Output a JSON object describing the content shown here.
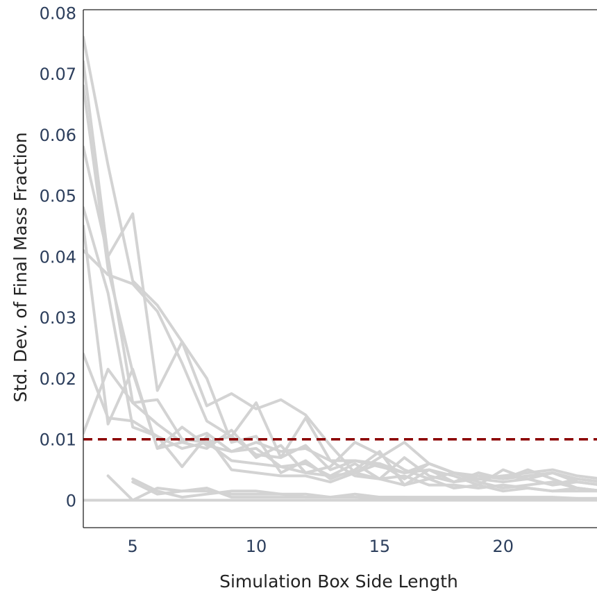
{
  "chart_data": {
    "type": "line",
    "xlabel": "Simulation Box Side Length",
    "ylabel": "Std. Dev. of Final Mass Fraction",
    "xlim": [
      3,
      23.8
    ],
    "ylim": [
      -0.0045,
      0.0805
    ],
    "x_ticks": [
      {
        "value": 5,
        "label": "5"
      },
      {
        "value": 10,
        "label": "10"
      },
      {
        "value": 15,
        "label": "15"
      },
      {
        "value": 20,
        "label": "20"
      }
    ],
    "y_ticks": [
      {
        "value": 0,
        "label": "0"
      },
      {
        "value": 0.01,
        "label": "0.01"
      },
      {
        "value": 0.02,
        "label": "0.02"
      },
      {
        "value": 0.03,
        "label": "0.03"
      },
      {
        "value": 0.04,
        "label": "0.04"
      },
      {
        "value": 0.05,
        "label": "0.05"
      },
      {
        "value": 0.06,
        "label": "0.06"
      },
      {
        "value": 0.07,
        "label": "0.07"
      },
      {
        "value": 0.08,
        "label": "0.08"
      }
    ],
    "grid": false,
    "legend": "none",
    "line_color": "#d3d3d3",
    "reference_line": {
      "y": 0.01,
      "color": "#8b0000",
      "style": "dashed"
    },
    "x": [
      3,
      4,
      5,
      6,
      7,
      8,
      9,
      10,
      11,
      12,
      13,
      14,
      15,
      16,
      17,
      18,
      19,
      20,
      21,
      22,
      23,
      24
    ],
    "series": [
      {
        "values": [
          0.076,
          0.055,
          0.036,
          0.032,
          0.026,
          0.0155,
          0.0175,
          0.015,
          0.0165,
          0.014,
          0.009,
          0.0045,
          0.007,
          0.0095,
          0.006,
          0.0045,
          0.0035,
          0.004,
          0.0045,
          0.005,
          0.004,
          0.0035
        ]
      },
      {
        "values": [
          0.072,
          0.04,
          0.016,
          0.0165,
          0.01,
          0.0095,
          0.0105,
          0.016,
          0.007,
          0.0135,
          0.0065,
          0.004,
          0.0035,
          0.007,
          0.004,
          0.003,
          0.0045,
          0.0035,
          0.004,
          0.0045,
          0.003,
          0.0025
        ]
      },
      {
        "values": [
          0.068,
          0.038,
          0.021,
          0.0085,
          0.0095,
          0.0085,
          0.0115,
          0.007,
          0.009,
          0.0045,
          0.0055,
          0.0095,
          0.0075,
          0.005,
          0.0035,
          0.0045,
          0.004,
          0.0035,
          0.005,
          0.0035,
          0.002,
          0.0015
        ]
      },
      {
        "values": [
          0.058,
          0.04,
          0.047,
          0.018,
          0.026,
          0.02,
          0.0095,
          0.0105,
          0.0045,
          0.0065,
          0.0035,
          0.005,
          0.008,
          0.0025,
          0.005,
          0.004,
          0.0025,
          0.005,
          0.0035,
          0.0025,
          0.0035,
          0.003
        ]
      },
      {
        "values": [
          0.048,
          0.034,
          0.012,
          0.0105,
          0.0085,
          0.0095,
          0.0065,
          0.006,
          0.0055,
          0.006,
          0.004,
          0.0045,
          0.006,
          0.0035,
          0.006,
          0.0045,
          0.003,
          0.002,
          0.0025,
          0.003,
          0.002,
          0.0015
        ]
      },
      {
        "values": [
          0.045,
          0.0125,
          0.0215,
          0.0085,
          0.012,
          0.009,
          0.008,
          0.0095,
          0.008,
          0.0085,
          0.0065,
          0.0065,
          0.0055,
          0.0045,
          0.006,
          0.0045,
          0.0035,
          0.004,
          0.0035,
          0.0045,
          0.0035,
          0.003
        ]
      },
      {
        "values": [
          0.041,
          0.037,
          0.0355,
          0.031,
          0.0225,
          0.013,
          0.0105,
          0.0075,
          0.007,
          0.009,
          0.005,
          0.0065,
          0.006,
          0.0045,
          0.005,
          0.003,
          0.0035,
          0.003,
          0.0035,
          0.0025,
          0.003,
          0.0025
        ]
      },
      {
        "values": [
          0.024,
          0.0135,
          0.013,
          0.0105,
          0.0055,
          0.0105,
          0.005,
          0.0045,
          0.004,
          0.004,
          0.003,
          0.0045,
          0.0035,
          0.0025,
          0.0035,
          0.002,
          0.0025,
          0.0015,
          0.002,
          0.0015,
          0.0015,
          0.0015
        ]
      },
      {
        "values": [
          0.011,
          0.0215,
          0.016,
          0.0125,
          0.0095,
          0.011,
          0.008,
          0.0085,
          0.0055,
          0.0045,
          0.004,
          0.006,
          0.0035,
          0.004,
          0.0025,
          0.0025,
          0.002,
          0.0025,
          0.002,
          0.0015,
          0.002,
          0.0015
        ]
      },
      {
        "values": [
          null,
          0.004,
          0.0,
          0.002,
          0.0015,
          0.0015,
          0.001,
          0.001,
          0.001,
          0.0005,
          0.0005,
          0.0005,
          0.0005,
          0.0005,
          0.0003,
          0.0003,
          0.0003,
          0.0003,
          0.0003,
          0.0003,
          0.0003,
          0.0003
        ]
      },
      {
        "values": [
          null,
          null,
          0.0035,
          0.0015,
          0.0005,
          0.001,
          0.0015,
          0.0015,
          0.001,
          0.001,
          0.0005,
          0.001,
          0.0005,
          0.0005,
          0.0005,
          0.0005,
          0.0005,
          0.0005,
          0.0005,
          0.0005,
          0.0003,
          0.0003
        ]
      },
      {
        "values": [
          null,
          null,
          0.003,
          0.001,
          0.0015,
          0.002,
          0.0005,
          0.0005,
          0.0005,
          0.0005,
          0.0005,
          0.0005,
          0.0003,
          0.0003,
          0.0003,
          0.0003,
          0.0003,
          0.0003,
          0.0002,
          0.0002,
          0.0002,
          0.0002
        ]
      },
      {
        "values": [
          0.0,
          0.0,
          0.0,
          0.0,
          0.0,
          0.0,
          0.0,
          0.0,
          0.0,
          0.0,
          0.0,
          0.0,
          0.0,
          0.0,
          0.0,
          0.0,
          0.0,
          0.0,
          0.0,
          0.0,
          0.0,
          0.0
        ]
      }
    ]
  }
}
